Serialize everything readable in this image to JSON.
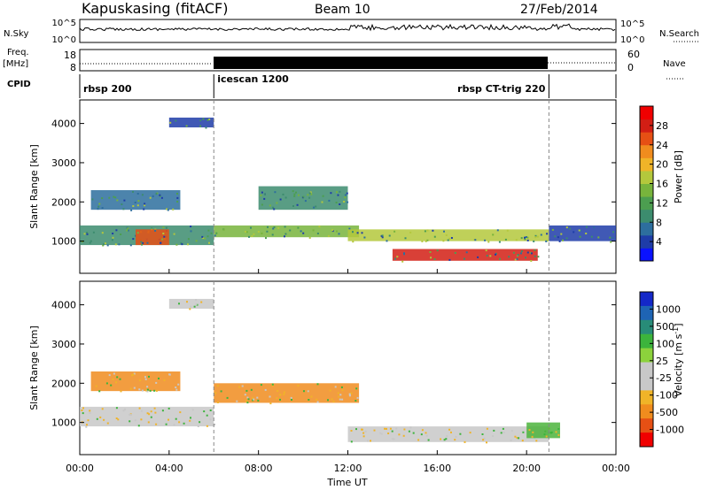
{
  "header": {
    "station": "Kapuskasing (fitACF)",
    "beam": "Beam 10",
    "date": "27/Feb/2014"
  },
  "summary_panels": {
    "nsky_label": "N.Sky",
    "nsky_ticks": [
      "10^5",
      "10^0"
    ],
    "nsearch_label": "N.Search",
    "nsearch_ticks": [
      "10^5",
      "10^0"
    ],
    "freq_label": "Freq.",
    "freq_unit": "[MHz]",
    "freq_ticks": [
      "18",
      "8"
    ],
    "nave_label": "Nave",
    "nave_ticks": [
      "60",
      "0"
    ],
    "cpid_label": "CPID",
    "cpid_segments": [
      {
        "name": "rbsp 200",
        "start_hour": 0,
        "end_hour": 6
      },
      {
        "name": "icescan 1200",
        "start_hour": 6,
        "end_hour": 21
      },
      {
        "name": "rbsp CT-trig 220",
        "start_hour": 21,
        "end_hour": 24
      }
    ]
  },
  "chart_data": [
    {
      "type": "heatmap",
      "name": "power",
      "xlabel": "Time UT",
      "ylabel": "Slant Range [km]",
      "x_ticks": [
        "00:00",
        "04:00",
        "08:00",
        "12:00",
        "16:00",
        "20:00",
        "00:00"
      ],
      "x_tick_hours": [
        0,
        4,
        8,
        12,
        16,
        20,
        24
      ],
      "xlim": [
        0,
        24
      ],
      "y_ticks": [
        1000,
        2000,
        3000,
        4000
      ],
      "ylim": [
        180,
        4600
      ],
      "colorbar": {
        "label": "Power [dB]",
        "ticks": [
          4,
          8,
          12,
          16,
          20,
          24,
          28
        ],
        "range": [
          0,
          32
        ],
        "colors": [
          "#0a12ff",
          "#1e3ca8",
          "#2d6e9e",
          "#3c8c6e",
          "#4c9e50",
          "#78b43c",
          "#b4c83c",
          "#f0b428",
          "#f08c1e",
          "#e65014",
          "#d21e14",
          "#f00000"
        ]
      },
      "regions": [
        {
          "t0": 0,
          "t1": 6,
          "r0": 900,
          "r1": 1400,
          "level": 10
        },
        {
          "t0": 0.5,
          "t1": 4.5,
          "r0": 1800,
          "r1": 2300,
          "level": 7
        },
        {
          "t0": 2.5,
          "t1": 4.0,
          "r0": 900,
          "r1": 1300,
          "level": 26
        },
        {
          "t0": 4.0,
          "t1": 6.0,
          "r0": 3900,
          "r1": 4150,
          "level": 5
        },
        {
          "t0": 6,
          "t1": 12.5,
          "r0": 1100,
          "r1": 1400,
          "level": 14
        },
        {
          "t0": 8,
          "t1": 12,
          "r0": 1800,
          "r1": 2400,
          "level": 9
        },
        {
          "t0": 12,
          "t1": 21,
          "r0": 1000,
          "r1": 1300,
          "level": 16
        },
        {
          "t0": 14,
          "t1": 20.5,
          "r0": 500,
          "r1": 800,
          "level": 28
        },
        {
          "t0": 21,
          "t1": 24,
          "r0": 1000,
          "r1": 1400,
          "level": 5
        }
      ]
    },
    {
      "type": "heatmap",
      "name": "velocity",
      "xlabel": "Time UT",
      "ylabel": "Slant Range [km]",
      "x_ticks": [
        "00:00",
        "04:00",
        "08:00",
        "12:00",
        "16:00",
        "20:00",
        "00:00"
      ],
      "x_tick_hours": [
        0,
        4,
        8,
        12,
        16,
        20,
        24
      ],
      "xlim": [
        0,
        24
      ],
      "y_ticks": [
        1000,
        2000,
        3000,
        4000
      ],
      "ylim": [
        180,
        4600
      ],
      "colorbar": {
        "label": "Velocity [m s",
        "label_sup": "-1",
        "label_end": "]",
        "ticks": [
          "1000",
          "500",
          "100",
          "25",
          "-25",
          "-100",
          "-500",
          "-1000"
        ],
        "colors": [
          "#1428c8",
          "#1e64b4",
          "#288c78",
          "#3cb43c",
          "#8cd23c",
          "#c8c8c8",
          "#c8c8c8",
          "#f0b428",
          "#f08c1e",
          "#e65014",
          "#f00000"
        ]
      },
      "regions": [
        {
          "t0": 0,
          "t1": 6,
          "r0": 900,
          "r1": 1400,
          "level": "grey"
        },
        {
          "t0": 0.5,
          "t1": 4.5,
          "r0": 1800,
          "r1": 2300,
          "level": "orange"
        },
        {
          "t0": 4.0,
          "t1": 6.0,
          "r0": 3900,
          "r1": 4150,
          "level": "grey"
        },
        {
          "t0": 6,
          "t1": 12.5,
          "r0": 1500,
          "r1": 2000,
          "level": "orange"
        },
        {
          "t0": 12,
          "t1": 21,
          "r0": 500,
          "r1": 900,
          "level": "grey"
        },
        {
          "t0": 20,
          "t1": 21.5,
          "r0": 600,
          "r1": 1000,
          "level": "green"
        }
      ]
    }
  ]
}
